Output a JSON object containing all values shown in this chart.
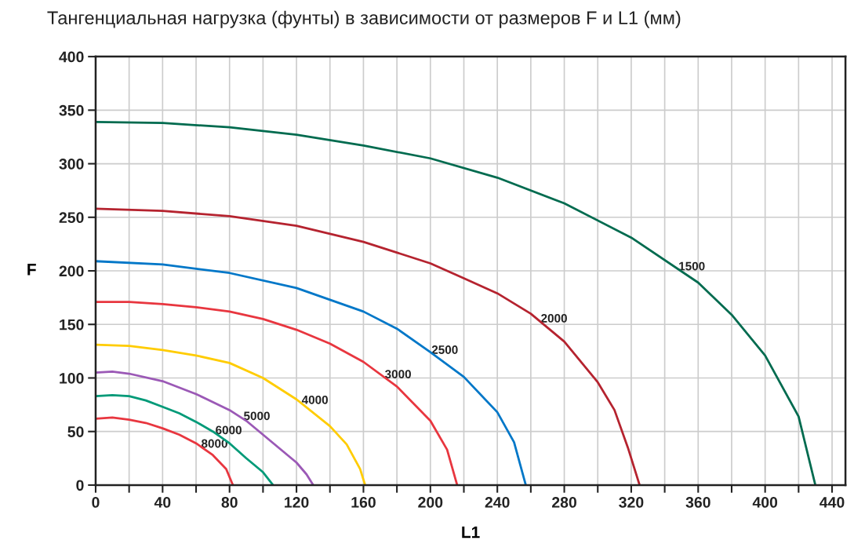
{
  "chart_data": {
    "type": "line",
    "title": "Тангенциальная нагрузка (фунты) в зависимости от размеров F и L1 (мм)",
    "xlabel": "L1",
    "ylabel": "F",
    "xlim": [
      0,
      448
    ],
    "ylim": [
      0,
      400
    ],
    "xticks": [
      0,
      {
        "value": 20,
        "label": null
      },
      40,
      {
        "value": 60,
        "label": null
      },
      80,
      {
        "value": 100,
        "label": null
      },
      120,
      {
        "value": 140,
        "label": null
      },
      160,
      {
        "value": 180,
        "label": null
      },
      200,
      {
        "value": 220,
        "label": null
      },
      240,
      {
        "value": 260,
        "label": null
      },
      280,
      {
        "value": 300,
        "label": null
      },
      320,
      {
        "value": 340,
        "label": null
      },
      360,
      {
        "value": 380,
        "label": null
      },
      400,
      {
        "value": 420,
        "label": null
      },
      440
    ],
    "yticks": [
      0,
      50,
      100,
      150,
      200,
      250,
      300,
      350,
      400
    ],
    "grid": true,
    "legend": false,
    "marker": "none",
    "line_style": "solid",
    "series": [
      {
        "name": "1500",
        "color": "#006b4f",
        "x": [
          0,
          40,
          80,
          120,
          160,
          200,
          240,
          280,
          320,
          360,
          380,
          400,
          420,
          430
        ],
        "values": [
          339,
          338,
          334,
          327,
          317,
          305,
          287,
          263,
          231,
          189,
          159,
          121,
          64,
          0
        ]
      },
      {
        "name": "2000",
        "color": "#b5232f",
        "x": [
          0,
          40,
          80,
          120,
          160,
          200,
          220,
          240,
          260,
          280,
          300,
          310,
          318,
          325
        ],
        "values": [
          258,
          256,
          251,
          242,
          227,
          207,
          193,
          179,
          160,
          134,
          96,
          70,
          35,
          0
        ]
      },
      {
        "name": "2500",
        "color": "#0077c8",
        "x": [
          0,
          40,
          80,
          120,
          160,
          180,
          200,
          220,
          240,
          250,
          257
        ],
        "values": [
          209,
          206,
          198,
          184,
          162,
          146,
          124,
          101,
          68,
          40,
          0
        ]
      },
      {
        "name": "3000",
        "color": "#e8363f",
        "x": [
          0,
          20,
          40,
          60,
          80,
          100,
          120,
          140,
          160,
          180,
          200,
          210,
          216
        ],
        "values": [
          171,
          171,
          169,
          166,
          162,
          155,
          145,
          132,
          115,
          92,
          60,
          33,
          0
        ]
      },
      {
        "name": "4000",
        "color": "#ffcc00",
        "x": [
          0,
          20,
          40,
          60,
          80,
          100,
          120,
          140,
          150,
          158,
          161
        ],
        "values": [
          131,
          130,
          126,
          121,
          114,
          100,
          80,
          55,
          38,
          15,
          0
        ]
      },
      {
        "name": "5000",
        "color": "#9b59b6",
        "x": [
          0,
          10,
          20,
          40,
          60,
          80,
          90,
          100,
          110,
          120,
          126,
          130
        ],
        "values": [
          105,
          106,
          104,
          97,
          85,
          70,
          60,
          47,
          34,
          21,
          10,
          0
        ]
      },
      {
        "name": "6000",
        "color": "#009a78",
        "x": [
          0,
          10,
          20,
          30,
          40,
          50,
          60,
          70,
          80,
          90,
          100,
          106
        ],
        "values": [
          83,
          84,
          83,
          79,
          73,
          67,
          59,
          50,
          39,
          25,
          12,
          0
        ]
      },
      {
        "name": "8000",
        "color": "#e8363f",
        "x": [
          0,
          10,
          20,
          30,
          40,
          50,
          60,
          70,
          78,
          82
        ],
        "values": [
          62,
          63,
          61,
          58,
          53,
          47,
          39,
          28,
          15,
          0
        ]
      }
    ]
  }
}
